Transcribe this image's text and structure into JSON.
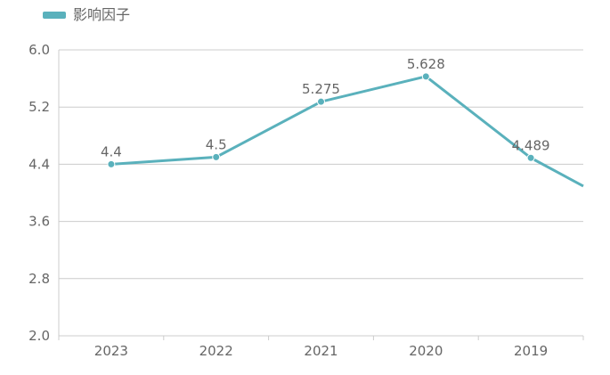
{
  "chart_data": {
    "type": "line",
    "title": "",
    "xlabel": "",
    "ylabel": "",
    "categories": [
      "2023",
      "2022",
      "2021",
      "2020",
      "2019"
    ],
    "series": [
      {
        "name": "影响因子",
        "values": [
          4.4,
          4.5,
          5.275,
          5.628,
          4.489
        ],
        "data_labels": [
          "4.4",
          "4.5",
          "5.275",
          "5.628",
          "4.489"
        ],
        "continues_past_plot_to": 3.7
      }
    ],
    "ylim": [
      2.0,
      6.0
    ],
    "y_ticks": [
      "2.0",
      "2.8",
      "3.6",
      "4.4",
      "5.2",
      "6.0"
    ],
    "grid": true,
    "legend_position": "top-left",
    "line_color": "#5ab1bc",
    "grid_color": "#cccccc",
    "axis_color": "#cccccc",
    "text_color": "#666666"
  }
}
